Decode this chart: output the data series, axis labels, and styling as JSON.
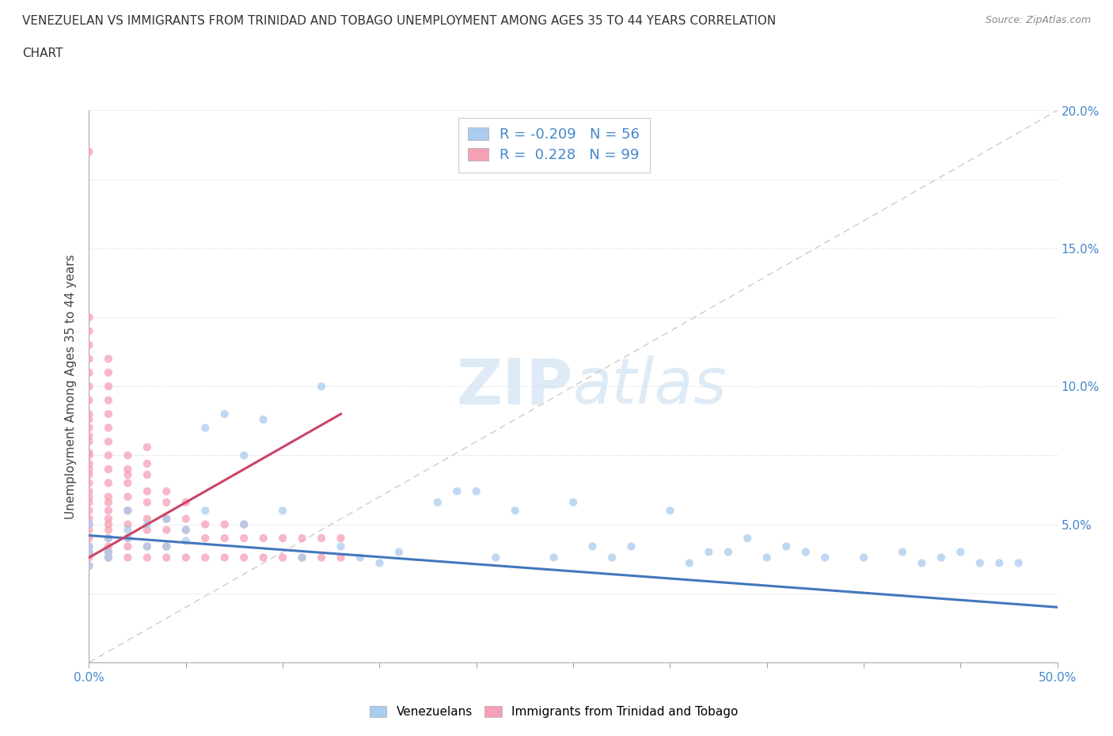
{
  "title_line1": "VENEZUELAN VS IMMIGRANTS FROM TRINIDAD AND TOBAGO UNEMPLOYMENT AMONG AGES 35 TO 44 YEARS CORRELATION",
  "title_line2": "CHART",
  "source_text": "Source: ZipAtlas.com",
  "ylabel": "Unemployment Among Ages 35 to 44 years",
  "xlim": [
    0.0,
    0.5
  ],
  "ylim": [
    0.0,
    0.2
  ],
  "venezuelans_R": -0.209,
  "venezuelans_N": 56,
  "tt_R": 0.228,
  "tt_N": 99,
  "venezuelan_color": "#aaccee",
  "tt_color": "#f5a0b5",
  "trend_venezuela_color": "#4477bb",
  "trend_tt_color": "#cc4466",
  "ref_line_color": "#cccccc",
  "background_color": "#ffffff",
  "watermark_color": "#d8eaf5",
  "venezuelans_x": [
    0.02,
    0.01,
    0.0,
    0.0,
    0.01,
    0.02,
    0.0,
    0.03,
    0.01,
    0.0,
    0.02,
    0.04,
    0.05,
    0.03,
    0.06,
    0.07,
    0.04,
    0.05,
    0.08,
    0.09,
    0.1,
    0.06,
    0.12,
    0.08,
    0.13,
    0.14,
    0.16,
    0.18,
    0.2,
    0.21,
    0.22,
    0.24,
    0.25,
    0.26,
    0.27,
    0.28,
    0.3,
    0.31,
    0.32,
    0.34,
    0.35,
    0.37,
    0.38,
    0.4,
    0.42,
    0.43,
    0.44,
    0.45,
    0.46,
    0.47,
    0.48,
    0.11,
    0.15,
    0.19,
    0.33,
    0.36
  ],
  "venezuelans_y": [
    0.055,
    0.045,
    0.05,
    0.04,
    0.04,
    0.045,
    0.035,
    0.05,
    0.038,
    0.042,
    0.048,
    0.052,
    0.048,
    0.042,
    0.055,
    0.09,
    0.042,
    0.044,
    0.075,
    0.088,
    0.055,
    0.085,
    0.1,
    0.05,
    0.042,
    0.038,
    0.04,
    0.058,
    0.062,
    0.038,
    0.055,
    0.038,
    0.058,
    0.042,
    0.038,
    0.042,
    0.055,
    0.036,
    0.04,
    0.045,
    0.038,
    0.04,
    0.038,
    0.038,
    0.04,
    0.036,
    0.038,
    0.04,
    0.036,
    0.036,
    0.036,
    0.038,
    0.036,
    0.062,
    0.04,
    0.042
  ],
  "tt_x": [
    0.0,
    0.0,
    0.0,
    0.0,
    0.0,
    0.0,
    0.0,
    0.0,
    0.0,
    0.0,
    0.0,
    0.0,
    0.0,
    0.0,
    0.0,
    0.0,
    0.0,
    0.0,
    0.0,
    0.0,
    0.0,
    0.0,
    0.0,
    0.0,
    0.0,
    0.0,
    0.0,
    0.0,
    0.0,
    0.0,
    0.01,
    0.01,
    0.01,
    0.01,
    0.01,
    0.01,
    0.01,
    0.01,
    0.01,
    0.01,
    0.01,
    0.01,
    0.01,
    0.01,
    0.01,
    0.01,
    0.01,
    0.01,
    0.01,
    0.01,
    0.02,
    0.02,
    0.02,
    0.02,
    0.02,
    0.02,
    0.02,
    0.02,
    0.02,
    0.03,
    0.03,
    0.03,
    0.03,
    0.03,
    0.03,
    0.03,
    0.03,
    0.04,
    0.04,
    0.04,
    0.04,
    0.04,
    0.04,
    0.05,
    0.05,
    0.05,
    0.05,
    0.06,
    0.06,
    0.06,
    0.07,
    0.07,
    0.07,
    0.08,
    0.08,
    0.08,
    0.09,
    0.09,
    0.1,
    0.1,
    0.11,
    0.11,
    0.12,
    0.12,
    0.13,
    0.13,
    0.02,
    0.03,
    0.0
  ],
  "tt_y": [
    0.04,
    0.045,
    0.05,
    0.035,
    0.055,
    0.06,
    0.038,
    0.042,
    0.065,
    0.07,
    0.075,
    0.08,
    0.085,
    0.09,
    0.095,
    0.1,
    0.105,
    0.11,
    0.115,
    0.12,
    0.125,
    0.048,
    0.052,
    0.058,
    0.062,
    0.068,
    0.072,
    0.076,
    0.082,
    0.088,
    0.04,
    0.045,
    0.05,
    0.055,
    0.06,
    0.065,
    0.07,
    0.075,
    0.08,
    0.085,
    0.09,
    0.095,
    0.1,
    0.105,
    0.11,
    0.038,
    0.042,
    0.048,
    0.052,
    0.058,
    0.045,
    0.05,
    0.055,
    0.06,
    0.065,
    0.07,
    0.075,
    0.038,
    0.042,
    0.048,
    0.052,
    0.058,
    0.062,
    0.068,
    0.072,
    0.038,
    0.042,
    0.048,
    0.052,
    0.058,
    0.062,
    0.038,
    0.042,
    0.048,
    0.052,
    0.058,
    0.038,
    0.045,
    0.05,
    0.038,
    0.045,
    0.05,
    0.038,
    0.045,
    0.05,
    0.038,
    0.045,
    0.038,
    0.045,
    0.038,
    0.045,
    0.038,
    0.045,
    0.038,
    0.045,
    0.038,
    0.068,
    0.078,
    0.185
  ]
}
